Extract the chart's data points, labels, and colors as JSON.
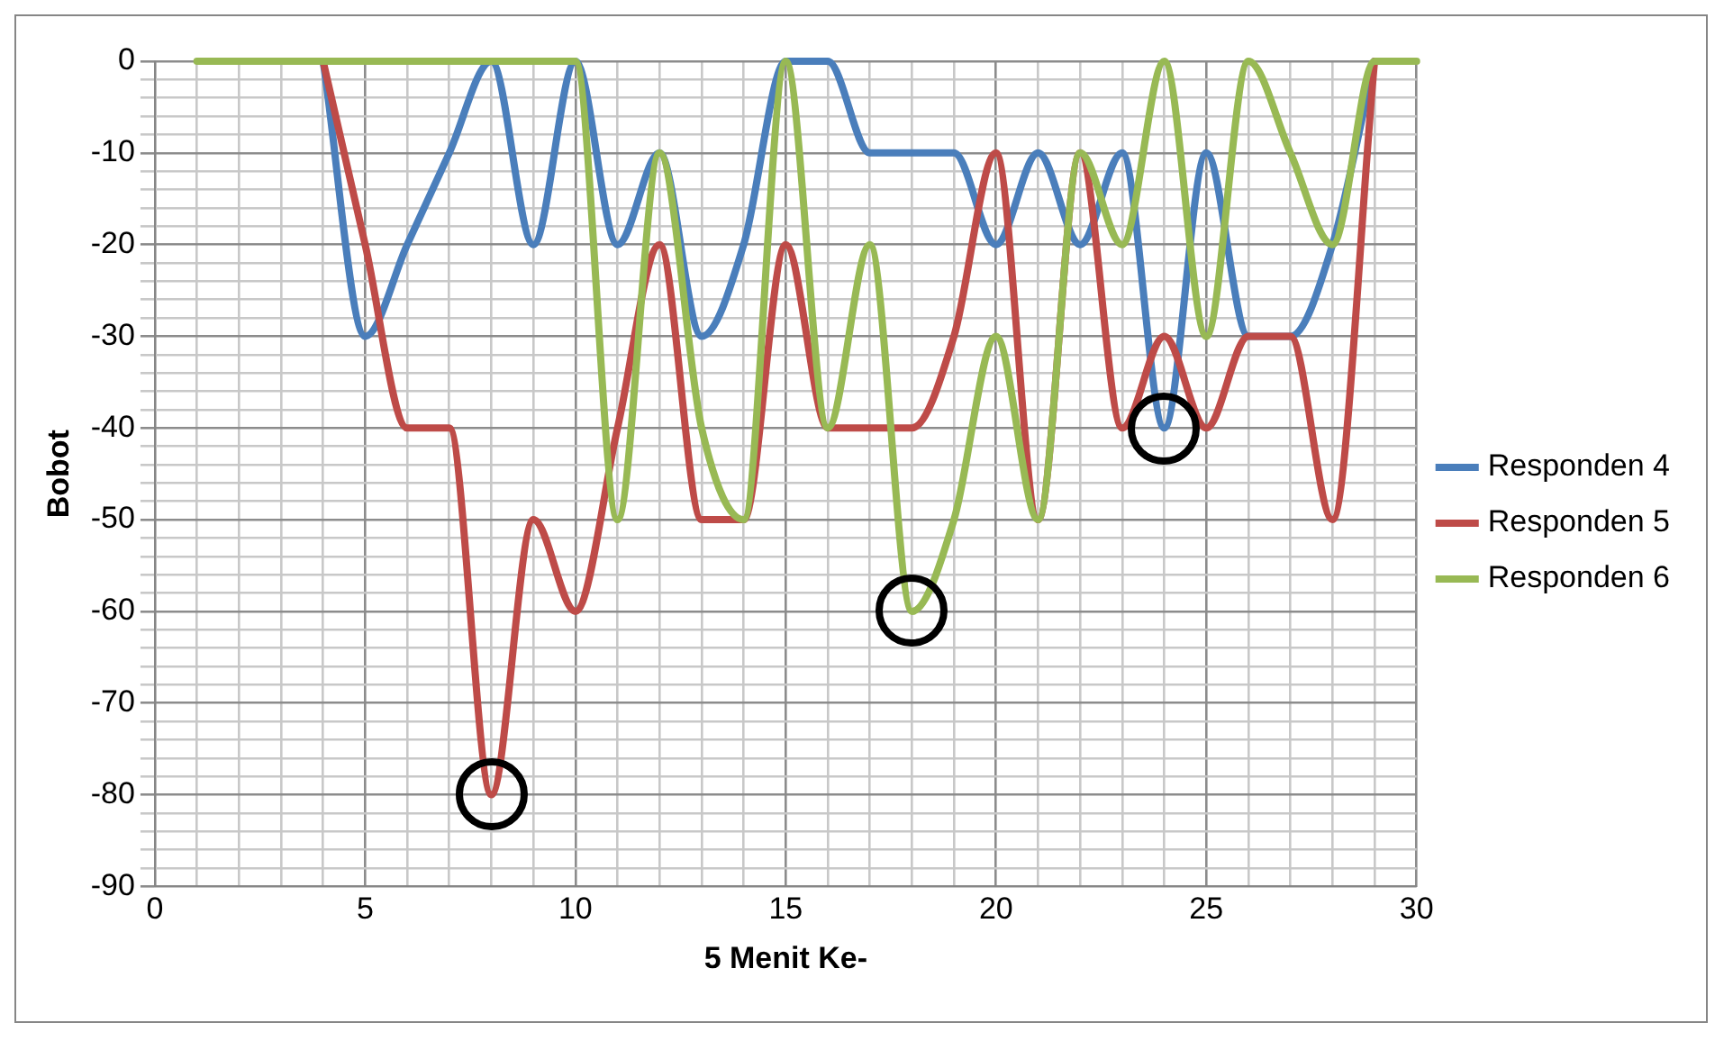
{
  "chart_data": {
    "type": "line",
    "xlabel": "5 Menit Ke-",
    "ylabel": "Bobot",
    "x": [
      1,
      2,
      3,
      4,
      5,
      6,
      7,
      8,
      9,
      10,
      11,
      12,
      13,
      14,
      15,
      16,
      17,
      18,
      19,
      20,
      21,
      22,
      23,
      24,
      25,
      26,
      27,
      28,
      29,
      30
    ],
    "xlim": [
      0,
      30
    ],
    "xticks": [
      0,
      5,
      10,
      15,
      20,
      25,
      30
    ],
    "ylim": [
      -90,
      0
    ],
    "yticks": [
      -90,
      -80,
      -70,
      -60,
      -50,
      -40,
      -30,
      -20,
      -10,
      0
    ],
    "grid": true,
    "legend": "right",
    "marker": "none",
    "line_style": "solid",
    "series": [
      {
        "name": "Responden 4",
        "color": "#4a7ebb",
        "values": [
          null,
          null,
          null,
          0,
          -30,
          -20,
          -10,
          0,
          -20,
          0,
          -20,
          -10,
          -30,
          -20,
          0,
          0,
          -10,
          -10,
          -10,
          -20,
          -10,
          -20,
          -10,
          -40,
          -10,
          -30,
          -30,
          -20,
          0,
          null
        ]
      },
      {
        "name": "Responden 5",
        "color": "#be4b48",
        "values": [
          null,
          null,
          null,
          0,
          -20,
          -40,
          -40,
          -80,
          -50,
          -60,
          -40,
          -20,
          -50,
          -50,
          -20,
          -40,
          -40,
          -40,
          -30,
          -10,
          -50,
          -10,
          -40,
          -30,
          -40,
          -30,
          -30,
          -50,
          0,
          null
        ]
      },
      {
        "name": "Responden 6",
        "color": "#98b954",
        "values": [
          0,
          0,
          0,
          0,
          0,
          0,
          0,
          0,
          0,
          0,
          -50,
          -10,
          -40,
          -50,
          0,
          -40,
          -20,
          -60,
          -50,
          -30,
          -50,
          -10,
          -20,
          0,
          -30,
          0,
          -10,
          -20,
          0,
          0
        ]
      }
    ]
  }
}
